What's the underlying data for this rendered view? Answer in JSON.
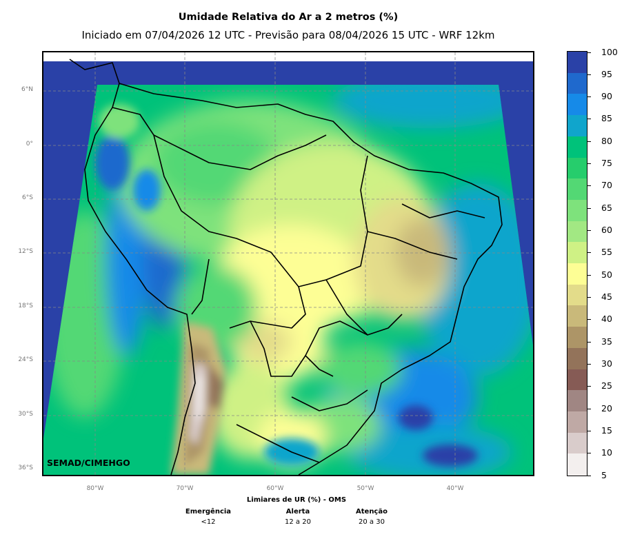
{
  "title": "Umidade Relativa do Ar a 2 metros (%)",
  "subtitle": "Iniciado em 07/04/2026 12 UTC - Previsão para 08/04/2026 15 UTC - WRF 12km",
  "credit": "SEMAD/CIMEHGO",
  "latitude_labels": [
    "6°N",
    "0°",
    "6°S",
    "12°S",
    "18°S",
    "24°S",
    "30°S",
    "36°S"
  ],
  "longitude_labels": [
    "80°W",
    "70°W",
    "60°W",
    "50°W",
    "40°W"
  ],
  "thresholds": {
    "title": "Limiares de UR (%) - OMS",
    "columns": [
      {
        "name": "Emergência",
        "range": "<12"
      },
      {
        "name": "Alerta",
        "range": "12 a 20"
      },
      {
        "name": "Atenção",
        "range": "20 a 30"
      }
    ]
  },
  "colorbar": {
    "labels": [
      "100",
      "95",
      "90",
      "85",
      "80",
      "75",
      "70",
      "65",
      "60",
      "55",
      "50",
      "45",
      "40",
      "35",
      "30",
      "25",
      "20",
      "15",
      "10",
      "5"
    ],
    "colors": [
      "#2a41a7",
      "#1f69cd",
      "#168ae8",
      "#10a5cc",
      "#00c27a",
      "#26cd6c",
      "#53d874",
      "#7ee27c",
      "#a2e883",
      "#cff185",
      "#fdfe95",
      "#e3dc8a",
      "#c9b97a",
      "#ad9567",
      "#93735a",
      "#865b55",
      "#a08683",
      "#bfa9a5",
      "#d9cccb",
      "#f3efee"
    ]
  }
}
